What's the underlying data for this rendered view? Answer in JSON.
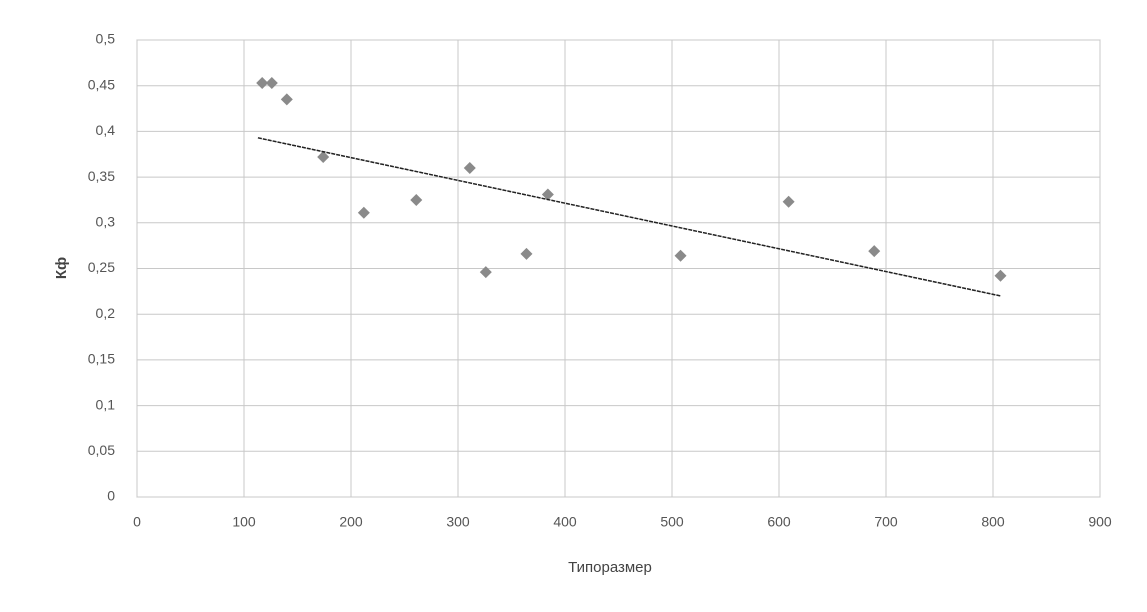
{
  "chart_data": {
    "type": "scatter",
    "x_label": "Типоразмер",
    "y_label": "Кф",
    "x": [
      117,
      126,
      140,
      174,
      212,
      261,
      311,
      326,
      364,
      384,
      508,
      609,
      689,
      807
    ],
    "series": [
      {
        "name": "Кф",
        "color": "#8a8a8a",
        "values": [
          0.453,
          0.453,
          0.435,
          0.372,
          0.311,
          0.325,
          0.36,
          0.246,
          0.266,
          0.331,
          0.264,
          0.323,
          0.269,
          0.242
        ]
      }
    ],
    "trendline": {
      "color": "#222222",
      "x": [
        113,
        807
      ],
      "values": [
        0.393,
        0.22
      ]
    },
    "xlim": [
      0,
      900
    ],
    "ylim": [
      0,
      0.5
    ],
    "xticks": [
      0,
      100,
      200,
      300,
      400,
      500,
      600,
      700,
      800,
      900
    ],
    "yticks": [
      {
        "value": 0,
        "label": "0"
      },
      {
        "value": 0.05,
        "label": "0,05"
      },
      {
        "value": 0.1,
        "label": "0,1"
      },
      {
        "value": 0.15,
        "label": "0,15"
      },
      {
        "value": 0.2,
        "label": "0,2"
      },
      {
        "value": 0.25,
        "label": "0,25"
      },
      {
        "value": 0.3,
        "label": "0,3"
      },
      {
        "value": 0.35,
        "label": "0,35"
      },
      {
        "value": 0.4,
        "label": "0,4"
      },
      {
        "value": 0.45,
        "label": "0,45"
      },
      {
        "value": 0.5,
        "label": "0,5"
      }
    ],
    "grid": true
  }
}
